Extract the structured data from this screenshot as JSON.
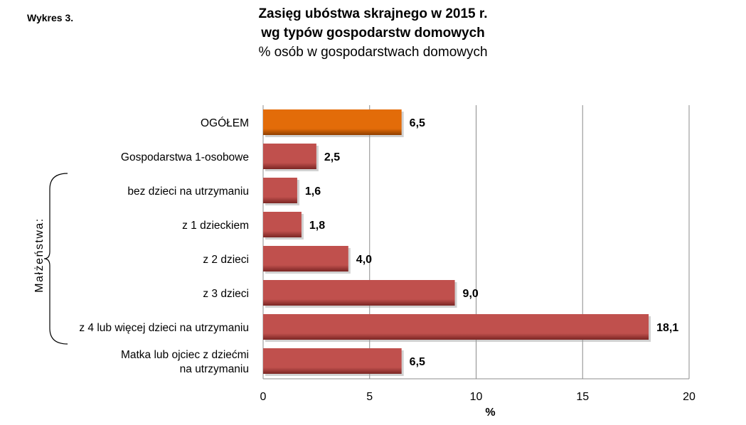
{
  "figure_label": "Wykres 3.",
  "chart_data": {
    "type": "bar",
    "orientation": "horizontal",
    "title": [
      "Zasięg ubóstwa skrajnego w 2015 r.",
      "wg typów gospodarstw domowych"
    ],
    "subtitle": "% osób w gospodarstwach domowych",
    "xlabel": "%",
    "xlim": [
      0,
      20
    ],
    "xticks": [
      0,
      5,
      10,
      15,
      20
    ],
    "grid": true,
    "categories": [
      [
        "OGÓŁEM"
      ],
      [
        "Gospodarstwa 1-osobowe"
      ],
      [
        "bez dzieci na utrzymaniu"
      ],
      [
        "z 1 dzieckiem"
      ],
      [
        "z 2 dzieci"
      ],
      [
        "z 3 dzieci"
      ],
      [
        "z 4 lub więcej dzieci na utrzymaniu"
      ],
      [
        "Matka lub ojciec z dziećmi",
        "na utrzymaniu"
      ]
    ],
    "values": [
      6.5,
      2.5,
      1.6,
      1.8,
      4.0,
      9.0,
      18.1,
      6.5
    ],
    "value_labels": [
      "6,5",
      "2,5",
      "1,6",
      "1,8",
      "4,0",
      "9,0",
      "18,1",
      "6,5"
    ],
    "highlight_index": 0,
    "group_label": "Małżeństwa:",
    "group_range": [
      2,
      6
    ],
    "colors": {
      "bar": "#c0504d",
      "bar_dark": "#7a2624",
      "highlight": "#e36c09",
      "highlight_dark": "#8f3f00",
      "grid": "#8c8c8c"
    }
  }
}
